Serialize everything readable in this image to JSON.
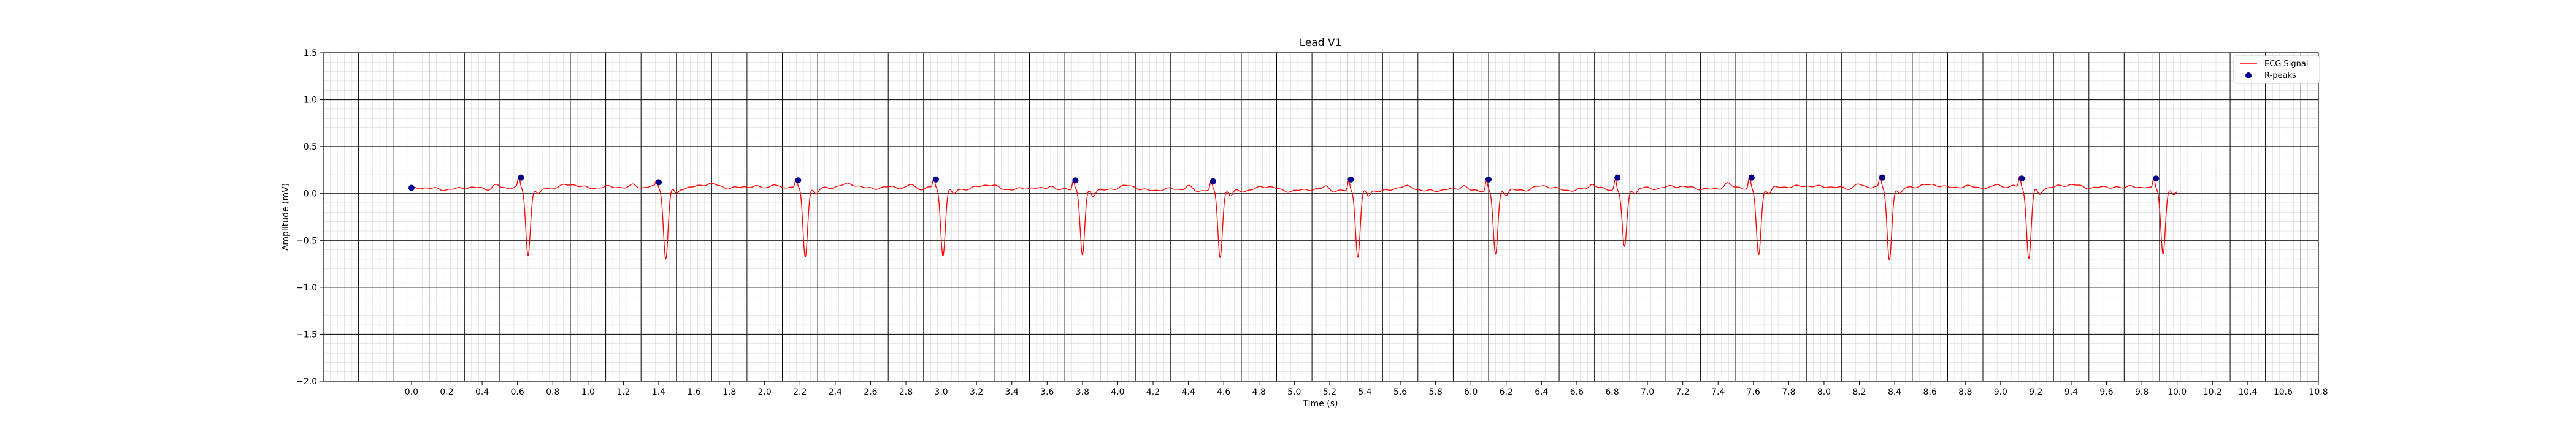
{
  "chart_data": {
    "type": "line",
    "title": "Lead V1",
    "xlabel": "Time (s)",
    "ylabel": "Amplitude (mV)",
    "xlim": [
      -0.5,
      10.8
    ],
    "ylim": [
      -2.0,
      1.5
    ],
    "xticks": [
      "0.0",
      "0.2",
      "0.4",
      "0.6",
      "0.8",
      "1.0",
      "1.2",
      "1.4",
      "1.6",
      "1.8",
      "2.0",
      "2.2",
      "2.4",
      "2.6",
      "2.8",
      "3.0",
      "3.2",
      "3.4",
      "3.6",
      "3.8",
      "4.0",
      "4.2",
      "4.4",
      "4.6",
      "4.8",
      "5.0",
      "5.2",
      "5.4",
      "5.6",
      "5.8",
      "6.0",
      "6.2",
      "6.4",
      "6.6",
      "6.8",
      "7.0",
      "7.2",
      "7.4",
      "7.6",
      "7.8",
      "8.0",
      "8.2",
      "8.4",
      "8.6",
      "8.8",
      "9.0",
      "9.2",
      "9.4",
      "9.6",
      "9.8",
      "10.0",
      "10.2",
      "10.4",
      "10.6",
      "10.8"
    ],
    "yticks": [
      "1.5",
      "1.0",
      "0.5",
      "0.0",
      "−0.5",
      "−1.0",
      "−1.5",
      "−2.0"
    ],
    "grid": true,
    "legend_position": "top-right",
    "series": [
      {
        "name": "ECG Signal",
        "color": "#ff0000",
        "x_range": [
          0.0,
          10.0
        ],
        "baseline": 0.05,
        "beats": [
          {
            "r_time": 0.62,
            "r_amp": 0.15,
            "s_amp": -0.72
          },
          {
            "r_time": 1.4,
            "r_amp": 0.11,
            "s_amp": -0.77
          },
          {
            "r_time": 2.19,
            "r_amp": 0.13,
            "s_amp": -0.75
          },
          {
            "r_time": 2.97,
            "r_amp": 0.14,
            "s_amp": -0.72
          },
          {
            "r_time": 3.76,
            "r_amp": 0.13,
            "s_amp": -0.71
          },
          {
            "r_time": 4.54,
            "r_amp": 0.12,
            "s_amp": -0.72
          },
          {
            "r_time": 5.32,
            "r_amp": 0.14,
            "s_amp": -0.72
          },
          {
            "r_time": 6.1,
            "r_amp": 0.14,
            "s_amp": -0.7
          },
          {
            "r_time": 6.83,
            "r_amp": 0.16,
            "s_amp": -0.62
          },
          {
            "r_time": 7.59,
            "r_amp": 0.17,
            "s_amp": -0.7
          },
          {
            "r_time": 8.33,
            "r_amp": 0.16,
            "s_amp": -0.77
          },
          {
            "r_time": 9.12,
            "r_amp": 0.16,
            "s_amp": -0.75
          },
          {
            "r_time": 9.88,
            "r_amp": 0.15,
            "s_amp": -0.72
          }
        ]
      },
      {
        "name": "R-peaks",
        "type": "scatter",
        "color": "#00008b",
        "x": [
          0.0,
          0.62,
          1.4,
          2.19,
          2.97,
          3.76,
          4.54,
          5.32,
          6.1,
          6.83,
          7.59,
          8.33,
          9.12,
          9.88
        ],
        "y": [
          0.06,
          0.17,
          0.12,
          0.14,
          0.15,
          0.14,
          0.13,
          0.15,
          0.15,
          0.17,
          0.17,
          0.17,
          0.16,
          0.16
        ]
      }
    ]
  }
}
